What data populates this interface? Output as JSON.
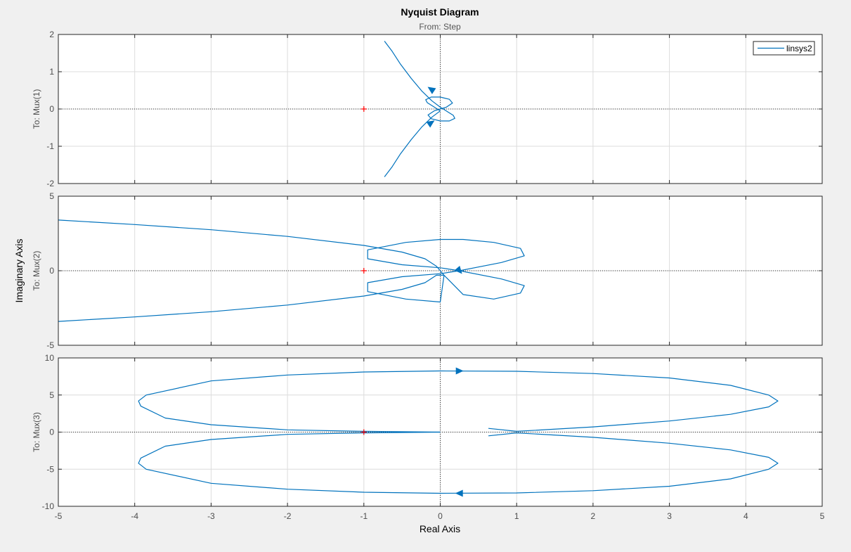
{
  "figure": {
    "title": "Nyquist Diagram",
    "subtitle": "From: Step",
    "xlabel": "Real Axis",
    "ylabel": "Imaginary Axis"
  },
  "colors": {
    "series": "#0072BD",
    "critical_point": "#ff0000",
    "axes_bg": "#ffffff",
    "figure_bg": "#f0f0f0",
    "grid": "#dcdcdc",
    "frame": "#262626",
    "tick_text": "#4d4d4d"
  },
  "legend": {
    "location": "top-right",
    "entries": [
      "linsys2"
    ]
  },
  "chart_data": {
    "type": "line",
    "subtype": "nyquist",
    "grid": true,
    "xlim": [
      -5,
      5
    ],
    "xticks": [
      -5,
      -4,
      -3,
      -2,
      -1,
      0,
      1,
      2,
      3,
      4,
      5
    ],
    "critical_point": [
      -1,
      0
    ],
    "series_name": "linsys2",
    "panels": [
      {
        "output": "To: Mux(1)",
        "ylim": [
          -2,
          2
        ],
        "yticks": [
          -2,
          -1,
          0,
          1,
          2
        ],
        "curves": [
          [
            [
              -0.73,
              1.82
            ],
            [
              -0.63,
              1.55
            ],
            [
              -0.52,
              1.2
            ],
            [
              -0.38,
              0.82
            ],
            [
              -0.24,
              0.48
            ],
            [
              -0.11,
              0.22
            ],
            [
              0.0,
              0.05
            ],
            [
              0.1,
              -0.08
            ],
            [
              0.17,
              -0.17
            ],
            [
              0.19,
              -0.25
            ],
            [
              0.12,
              -0.32
            ],
            [
              0.0,
              -0.32
            ],
            [
              -0.12,
              -0.26
            ],
            [
              -0.16,
              -0.16
            ],
            [
              -0.08,
              -0.05
            ],
            [
              0.0,
              0.0
            ],
            [
              0.08,
              0.05
            ],
            [
              0.16,
              0.16
            ],
            [
              0.12,
              0.26
            ],
            [
              0.0,
              0.32
            ],
            [
              -0.12,
              0.32
            ],
            [
              -0.19,
              0.25
            ],
            [
              -0.17,
              0.17
            ],
            [
              -0.1,
              0.08
            ],
            [
              0.0,
              -0.05
            ],
            [
              -0.11,
              -0.22
            ],
            [
              -0.24,
              -0.48
            ],
            [
              -0.38,
              -0.82
            ],
            [
              -0.52,
              -1.2
            ],
            [
              -0.63,
              -1.55
            ],
            [
              -0.73,
              -1.82
            ]
          ]
        ],
        "arrows": [
          {
            "x": -0.12,
            "y": 0.53,
            "dx": -0.08,
            "dy": 0.11
          },
          {
            "x": -0.12,
            "y": -0.37,
            "dx": 0.08,
            "dy": 0.11
          }
        ]
      },
      {
        "output": "To: Mux(2)",
        "ylim": [
          -5,
          5
        ],
        "yticks": [
          -5,
          0,
          5
        ],
        "ytick_labels": [
          "-5",
          "0",
          "5"
        ],
        "curves": [
          [
            [
              -5.0,
              3.4
            ],
            [
              -4.0,
              3.1
            ],
            [
              -3.0,
              2.75
            ],
            [
              -2.0,
              2.3
            ],
            [
              -1.0,
              1.7
            ],
            [
              -0.5,
              1.25
            ],
            [
              -0.2,
              0.8
            ],
            [
              -0.05,
              0.3
            ],
            [
              0.0,
              0.0
            ],
            [
              0.05,
              -0.3
            ],
            [
              0.3,
              -1.6
            ],
            [
              0.7,
              -1.9
            ],
            [
              1.05,
              -1.5
            ],
            [
              1.1,
              -1.0
            ],
            [
              0.8,
              -0.55
            ],
            [
              0.25,
              0.0
            ],
            [
              0.8,
              0.55
            ],
            [
              1.1,
              1.0
            ],
            [
              1.05,
              1.5
            ],
            [
              0.7,
              1.9
            ],
            [
              0.3,
              2.1
            ],
            [
              0.0,
              2.1
            ],
            [
              -0.45,
              1.9
            ],
            [
              -0.95,
              1.4
            ],
            [
              -0.95,
              0.8
            ],
            [
              -0.5,
              0.4
            ],
            [
              0.0,
              0.2
            ],
            [
              0.25,
              0.0
            ],
            [
              0.0,
              -0.2
            ],
            [
              -0.5,
              -0.4
            ],
            [
              -0.95,
              -0.8
            ],
            [
              -0.95,
              -1.4
            ],
            [
              -0.45,
              -1.9
            ],
            [
              0.0,
              -2.1
            ],
            [
              0.05,
              -0.3
            ],
            [
              -0.05,
              -0.3
            ],
            [
              -0.2,
              -0.8
            ],
            [
              -0.5,
              -1.25
            ],
            [
              -1.0,
              -1.7
            ],
            [
              -2.0,
              -2.3
            ],
            [
              -3.0,
              -2.75
            ],
            [
              -4.0,
              -3.1
            ],
            [
              -5.0,
              -3.4
            ]
          ]
        ],
        "arrows": [
          {
            "x": 0.25,
            "y": 0.0,
            "dx": 0.05,
            "dy": -0.3
          }
        ]
      },
      {
        "output": "To: Mux(3)",
        "ylim": [
          -10,
          10
        ],
        "yticks": [
          -10,
          -5,
          0,
          5,
          10
        ],
        "curves": [
          [
            [
              0.0,
              0.0
            ],
            [
              -1.0,
              0.1
            ],
            [
              -2.0,
              0.3
            ],
            [
              -3.0,
              1.0
            ],
            [
              -3.6,
              1.9
            ],
            [
              -3.92,
              3.5
            ],
            [
              -3.95,
              4.2
            ],
            [
              -3.85,
              5.0
            ],
            [
              -3.0,
              6.9
            ],
            [
              -2.0,
              7.7
            ],
            [
              -1.0,
              8.1
            ],
            [
              0.0,
              8.25
            ],
            [
              1.0,
              8.2
            ],
            [
              2.0,
              7.9
            ],
            [
              3.0,
              7.3
            ],
            [
              3.8,
              6.3
            ],
            [
              4.3,
              5.0
            ],
            [
              4.42,
              4.2
            ],
            [
              4.3,
              3.4
            ],
            [
              3.8,
              2.4
            ],
            [
              3.0,
              1.5
            ],
            [
              2.0,
              0.7
            ],
            [
              1.0,
              0.1
            ],
            [
              0.63,
              0.5
            ]
          ],
          [
            [
              0.63,
              -0.5
            ],
            [
              1.0,
              -0.1
            ],
            [
              2.0,
              -0.7
            ],
            [
              3.0,
              -1.5
            ],
            [
              3.8,
              -2.4
            ],
            [
              4.3,
              -3.4
            ],
            [
              4.42,
              -4.2
            ],
            [
              4.3,
              -5.0
            ],
            [
              3.8,
              -6.3
            ],
            [
              3.0,
              -7.3
            ],
            [
              2.0,
              -7.9
            ],
            [
              1.0,
              -8.2
            ],
            [
              0.0,
              -8.25
            ],
            [
              -1.0,
              -8.1
            ],
            [
              -2.0,
              -7.7
            ],
            [
              -3.0,
              -6.9
            ],
            [
              -3.85,
              -5.0
            ],
            [
              -3.95,
              -4.2
            ],
            [
              -3.92,
              -3.5
            ],
            [
              -3.6,
              -1.9
            ],
            [
              -3.0,
              -1.0
            ],
            [
              -2.0,
              -0.3
            ],
            [
              -1.0,
              -0.1
            ],
            [
              0.0,
              0.0
            ]
          ]
        ],
        "arrows": [
          {
            "x": 0.25,
            "y": 8.25,
            "dx": 1.0,
            "dy": 0.0
          },
          {
            "x": 0.25,
            "y": -8.25,
            "dx": -1.0,
            "dy": 0.0
          }
        ]
      }
    ]
  }
}
